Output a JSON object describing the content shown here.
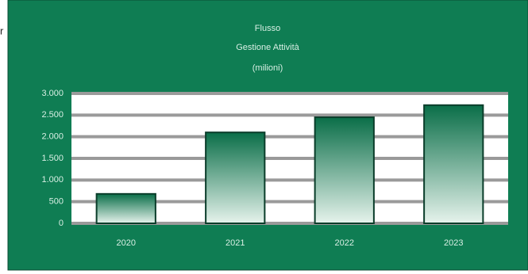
{
  "fragment": "r",
  "chart_data": {
    "type": "bar",
    "title": "Flusso",
    "subtitle": "Gestione Attività",
    "unit_label": "(milioni)",
    "categories": [
      "2020",
      "2021",
      "2022",
      "2023"
    ],
    "values": [
      680,
      2100,
      2450,
      2730
    ],
    "color": "#0e7a52",
    "ylim": [
      0,
      3000
    ],
    "yticks": [
      0,
      500,
      {
        "value": 1000,
        "label": "1.000"
      },
      {
        "value": 1500,
        "label": "1.500"
      },
      {
        "value": 2000,
        "label": "2.000"
      },
      {
        "value": 2500,
        "label": "2.500"
      },
      {
        "value": 3000,
        "label": "3.000"
      }
    ],
    "grid": true
  }
}
